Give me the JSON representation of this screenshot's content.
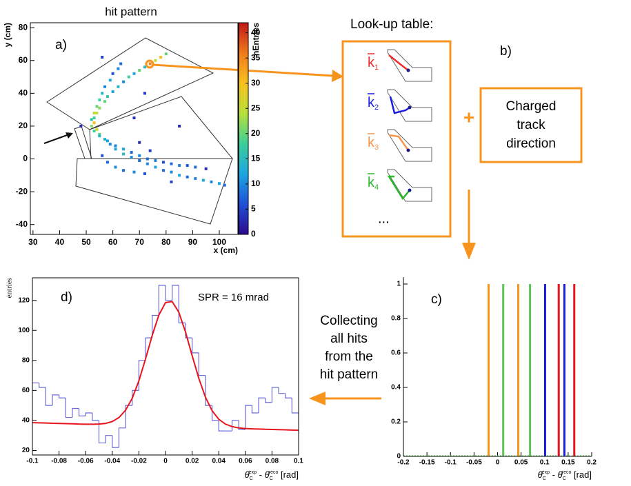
{
  "chart_data": [
    {
      "type": "heatmap",
      "title": "hit pattern",
      "panel_label": "a)",
      "xlabel": "x (cm)",
      "ylabel": "y (cm)",
      "zlabel": "nEntries",
      "xlim": [
        29,
        107
      ],
      "ylim": [
        -46,
        83
      ],
      "xticks": [
        30,
        40,
        50,
        60,
        70,
        80,
        90,
        100
      ],
      "yticks": [
        -40,
        -20,
        0,
        20,
        40,
        60,
        80
      ],
      "zlim": [
        0,
        42
      ],
      "zticks": [
        0,
        5,
        10,
        15,
        20,
        25,
        30,
        35,
        40
      ],
      "colormap": [
        "#2c0a8c",
        "#1f4fd8",
        "#1ca6e0",
        "#3ccf9a",
        "#b8e03a",
        "#f7c21e",
        "#f07a1a",
        "#c01818"
      ],
      "x": [
        80,
        78,
        76,
        74,
        72,
        70,
        68,
        66,
        64,
        62,
        60,
        58,
        57,
        55,
        54,
        53,
        53,
        54,
        55,
        57,
        59,
        61,
        64,
        67,
        70,
        73,
        76,
        79,
        82,
        85,
        88,
        91,
        94,
        97,
        100,
        102,
        63,
        62,
        60,
        59,
        57,
        56,
        55,
        54,
        53,
        52,
        52,
        53,
        55,
        58,
        61,
        64,
        67,
        70,
        73,
        76,
        79,
        82,
        85,
        88,
        91,
        56,
        58,
        61,
        64,
        68,
        72,
        72,
        56,
        74,
        68,
        85,
        70,
        95,
        82,
        48
      ],
      "y": [
        64,
        62,
        60,
        58,
        56,
        54,
        52,
        50,
        47,
        44,
        41,
        38,
        35,
        31,
        28,
        25,
        22,
        18,
        15,
        12,
        9,
        6,
        3,
        1,
        -1,
        -3,
        -5,
        -7,
        -8,
        -10,
        -11,
        -12,
        -13,
        -14,
        -15,
        -16,
        58,
        55,
        52,
        48,
        44,
        40,
        36,
        32,
        28,
        24,
        20,
        17,
        14,
        11,
        8,
        6,
        4,
        2,
        0,
        -1,
        -2,
        -3,
        -4,
        -4,
        -5,
        2,
        -2,
        -5,
        -7,
        -8,
        -9,
        40,
        62,
        5,
        25,
        20,
        10,
        -6,
        -14,
        20
      ],
      "values": [
        20,
        30,
        25,
        35,
        15,
        20,
        12,
        18,
        10,
        14,
        12,
        16,
        20,
        22,
        25,
        18,
        30,
        25,
        20,
        14,
        10,
        12,
        15,
        10,
        8,
        10,
        12,
        8,
        10,
        12,
        8,
        10,
        12,
        10,
        12,
        8,
        8,
        10,
        6,
        12,
        10,
        14,
        18,
        20,
        24,
        16,
        22,
        18,
        14,
        12,
        10,
        12,
        8,
        10,
        8,
        10,
        6,
        8,
        10,
        6,
        8,
        6,
        8,
        10,
        8,
        10,
        6,
        4,
        5,
        4,
        3,
        3,
        3,
        3,
        5,
        3
      ]
    },
    {
      "type": "spikes",
      "panel_label": "c)",
      "xlabel": [
        "θ",
        "C",
        "exp",
        " - ",
        "θ",
        "C",
        "reco",
        " [rad]"
      ],
      "xlim": [
        -0.2,
        0.2
      ],
      "ylim": [
        0,
        1.04
      ],
      "xticks": [
        -0.2,
        -0.15,
        -0.1,
        -0.05,
        0,
        0.05,
        0.1,
        0.15,
        0.2
      ],
      "yticks": [
        0,
        0.2,
        0.4,
        0.6,
        0.8,
        1
      ],
      "series": [
        {
          "color": "#f7941d",
          "x": [
            -0.019,
            0.044
          ],
          "values": [
            1,
            1
          ]
        },
        {
          "color": "#5cc454",
          "x": [
            0.012,
            0.069
          ],
          "values": [
            1,
            1
          ]
        },
        {
          "color": "#1a1adb",
          "x": [
            0.101,
            0.142
          ],
          "values": [
            1,
            1
          ]
        },
        {
          "color": "#e8141c",
          "x": [
            0.13,
            0.163
          ],
          "values": [
            1,
            1
          ]
        }
      ]
    },
    {
      "type": "histogram",
      "panel_label": "d)",
      "annotation": "SPR = 16 mrad",
      "ylabel": "entries",
      "xlabel": [
        "θ",
        "C",
        "exp",
        " - ",
        "θ",
        "C",
        "reco",
        " [rad]"
      ],
      "xlim": [
        -0.1,
        0.1
      ],
      "ylim": [
        17,
        135
      ],
      "xticks": [
        -0.1,
        -0.08,
        -0.06,
        -0.04,
        -0.02,
        0,
        0.02,
        0.04,
        0.06,
        0.08,
        0.1
      ],
      "yticks": [
        20,
        40,
        60,
        80,
        100,
        120
      ],
      "color": "#6a6ad8",
      "bins": [
        -0.1,
        -0.095,
        -0.09,
        -0.085,
        -0.08,
        -0.075,
        -0.07,
        -0.065,
        -0.06,
        -0.055,
        -0.05,
        -0.045,
        -0.04,
        -0.035,
        -0.03,
        -0.025,
        -0.02,
        -0.015,
        -0.01,
        -0.005,
        0,
        0.005,
        0.01,
        0.015,
        0.02,
        0.025,
        0.03,
        0.035,
        0.04,
        0.045,
        0.05,
        0.055,
        0.06,
        0.065,
        0.07,
        0.075,
        0.08,
        0.085,
        0.09,
        0.095,
        0.1
      ],
      "values": [
        65,
        62,
        50,
        57,
        55,
        42,
        48,
        43,
        45,
        40,
        25,
        30,
        22,
        35,
        50,
        60,
        80,
        95,
        110,
        130,
        120,
        130,
        105,
        95,
        85,
        70,
        50,
        40,
        33,
        33,
        40,
        34,
        50,
        45,
        55,
        52,
        62,
        58,
        55,
        45
      ],
      "fit": {
        "color": "#e8141c",
        "x": [
          -0.1,
          -0.095,
          -0.09,
          -0.085,
          -0.08,
          -0.075,
          -0.07,
          -0.065,
          -0.06,
          -0.055,
          -0.05,
          -0.045,
          -0.04,
          -0.035,
          -0.03,
          -0.025,
          -0.02,
          -0.015,
          -0.01,
          -0.005,
          0,
          0.005,
          0.01,
          0.015,
          0.02,
          0.025,
          0.03,
          0.035,
          0.04,
          0.045,
          0.05,
          0.055,
          0.06,
          0.065,
          0.07,
          0.075,
          0.08,
          0.085,
          0.09,
          0.095,
          0.1
        ],
        "values": [
          38.5,
          38.4,
          38.3,
          38.1,
          38,
          37.9,
          37.8,
          37.6,
          37.5,
          37.5,
          37.6,
          38,
          39.3,
          41.9,
          46.8,
          54.8,
          66.4,
          81,
          96.6,
          110.2,
          118.5,
          119.2,
          112.1,
          99,
          83.2,
          68.1,
          55.5,
          46.5,
          40.8,
          37.6,
          35.9,
          35,
          34.6,
          34.4,
          34.25,
          34.1,
          34,
          33.9,
          33.75,
          33.6,
          33.5
        ]
      }
    }
  ],
  "diagram": {
    "lookup_title": "Look-up table:",
    "panel_label": "b)",
    "entries": [
      {
        "symbol": "k",
        "index": "1",
        "color": "#ee2a2a"
      },
      {
        "symbol": "k",
        "index": "2",
        "color": "#1a1ae0"
      },
      {
        "symbol": "k",
        "index": "3",
        "color": "#f7944a"
      },
      {
        "symbol": "k",
        "index": "4",
        "color": "#2ab82a"
      }
    ],
    "more": "...",
    "plus": "+",
    "track_box": [
      "Charged",
      "track",
      "direction"
    ],
    "collecting": [
      "Collecting",
      "all hits",
      "from the",
      "hit pattern"
    ]
  }
}
